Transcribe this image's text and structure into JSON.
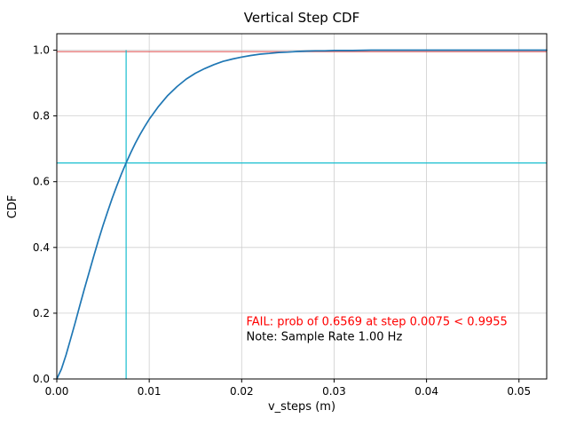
{
  "chart_data": {
    "type": "line",
    "title": "Vertical Step CDF",
    "xlabel": "v_steps (m)",
    "ylabel": "CDF",
    "xlim": [
      0.0,
      0.053
    ],
    "ylim": [
      0.0,
      1.05
    ],
    "grid": true,
    "legend": false,
    "x_ticks": {
      "values": [
        0.0,
        0.01,
        0.02,
        0.03,
        0.04,
        0.05
      ],
      "labels": [
        "0.00",
        "0.01",
        "0.02",
        "0.03",
        "0.04",
        "0.05"
      ]
    },
    "y_ticks": {
      "values": [
        0.0,
        0.2,
        0.4,
        0.6,
        0.8,
        1.0
      ],
      "labels": [
        "0.0",
        "0.2",
        "0.4",
        "0.6",
        "0.8",
        "1.0"
      ]
    },
    "colors": {
      "curve": "#1f77b4",
      "grid": "#cfcfcf",
      "threshold_red": "#e05c5c",
      "marker_cyan": "#17becf",
      "fail_text": "#ff0000",
      "note_text": "#000000"
    },
    "series": [
      {
        "name": "empirical-cdf",
        "color": "#1f77b4",
        "x": [
          0,
          0.0005,
          0.001,
          0.0015,
          0.002,
          0.0025,
          0.003,
          0.0035,
          0.004,
          0.0045,
          0.005,
          0.0055,
          0.006,
          0.0065,
          0.007,
          0.0075,
          0.008,
          0.0085,
          0.009,
          0.0095,
          0.01,
          0.011,
          0.012,
          0.013,
          0.014,
          0.015,
          0.016,
          0.017,
          0.018,
          0.019,
          0.02,
          0.021,
          0.022,
          0.023,
          0.024,
          0.025,
          0.026,
          0.027,
          0.028,
          0.029,
          0.03,
          0.032,
          0.034,
          0.036,
          0.038,
          0.04,
          0.042,
          0.044,
          0.046,
          0.048,
          0.05,
          0.053
        ],
        "y": [
          0,
          0.03,
          0.073,
          0.122,
          0.172,
          0.224,
          0.275,
          0.325,
          0.374,
          0.422,
          0.467,
          0.509,
          0.55,
          0.588,
          0.624,
          0.657,
          0.688,
          0.717,
          0.743,
          0.767,
          0.79,
          0.829,
          0.862,
          0.889,
          0.912,
          0.93,
          0.944,
          0.956,
          0.966,
          0.973,
          0.979,
          0.984,
          0.988,
          0.99,
          0.993,
          0.994,
          0.996,
          0.997,
          0.998,
          0.998,
          0.999,
          0.999,
          1.0,
          1.0,
          1.0,
          1.0,
          1.0,
          1.0,
          1.0,
          1.0,
          1.0,
          1.0
        ]
      }
    ],
    "reference_lines": [
      {
        "name": "required-probability-line",
        "orientation": "h",
        "value": 0.9955,
        "color": "#e05c5c"
      },
      {
        "name": "measured-probability-line",
        "orientation": "h",
        "value": 0.6569,
        "color": "#17becf"
      },
      {
        "name": "step-threshold-line",
        "orientation": "v",
        "value": 0.0075,
        "to": 1.0,
        "color": "#17becf"
      }
    ],
    "annotations": [
      {
        "name": "fail-annotation",
        "text": "FAIL: prob of 0.6569 at step 0.0075 < 0.9955",
        "color": "#ff0000",
        "x": 0.0205,
        "y": 0.163
      },
      {
        "name": "sample-rate-note",
        "text": "Note: Sample Rate 1.00 Hz",
        "color": "#000000",
        "x": 0.0205,
        "y": 0.118
      }
    ],
    "key_values": {
      "measured_probability": 0.6569,
      "step_value": 0.0075,
      "required_probability": 0.9955,
      "sample_rate_hz": "1.00"
    }
  }
}
